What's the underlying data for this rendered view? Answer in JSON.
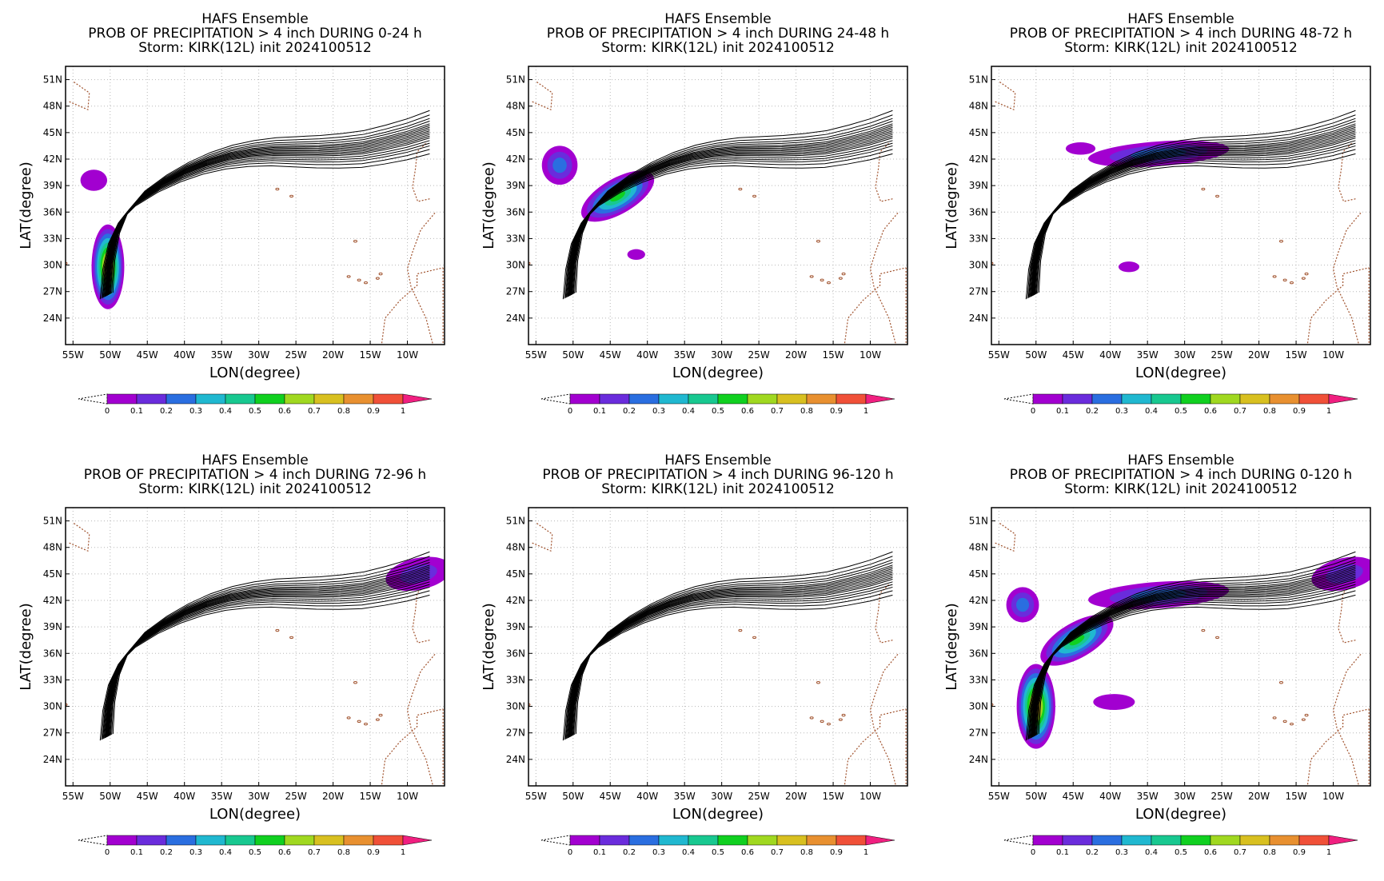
{
  "common": {
    "title1": "HAFS Ensemble",
    "title3": "Storm: KIRK(12L) init 2024100512",
    "xlabel": "LON(degree)",
    "ylabel": "LAT(degree)",
    "xticks": [
      "55W",
      "50W",
      "45W",
      "40W",
      "35W",
      "30W",
      "25W",
      "20W",
      "15W",
      "10W"
    ],
    "yticks": [
      "51N",
      "48N",
      "45N",
      "42N",
      "39N",
      "36N",
      "33N",
      "30N",
      "27N",
      "24N"
    ],
    "colorbar_labels": [
      "0",
      "0.1",
      "0.2",
      "0.3",
      "0.4",
      "0.5",
      "0.6",
      "0.7",
      "0.8",
      "0.9",
      "1"
    ],
    "colors": [
      "#a200d0",
      "#6a2cdc",
      "#2a6ee0",
      "#20b8d0",
      "#18c890",
      "#10d020",
      "#a0d820",
      "#d8c020",
      "#e89030",
      "#f05038",
      "#f01f80"
    ]
  },
  "panels": [
    {
      "title2": "PROB OF PRECIPITATION > 4 inch DURING  0-24 h"
    },
    {
      "title2": "PROB OF PRECIPITATION > 4 inch DURING 24-48 h"
    },
    {
      "title2": "PROB OF PRECIPITATION > 4 inch DURING 48-72 h"
    },
    {
      "title2": "PROB OF PRECIPITATION > 4 inch DURING 72-96 h"
    },
    {
      "title2": "PROB OF PRECIPITATION > 4 inch DURING 96-120 h"
    },
    {
      "title2": "PROB OF PRECIPITATION > 4 inch DURING 0-120 h"
    }
  ],
  "track": {
    "center_lon": [
      -50.5,
      -50.2,
      -49.5,
      -48.2,
      -46.0,
      -43.0,
      -40.0,
      -37.0,
      -34.0,
      -31.0,
      -28.0,
      -25.0,
      -22.0,
      -19.0,
      -16.0,
      -13.0,
      -10.0,
      -7.0
    ],
    "center_lat": [
      26.5,
      30.0,
      33.0,
      35.5,
      37.5,
      39.2,
      40.5,
      41.5,
      42.2,
      42.6,
      42.8,
      42.8,
      42.8,
      42.9,
      43.1,
      43.6,
      44.2,
      45.0
    ],
    "member_offsets": [
      -2.4,
      -1.9,
      -1.5,
      -1.2,
      -0.9,
      -0.6,
      -0.4,
      -0.2,
      0,
      0.2,
      0.4,
      0.6,
      0.8,
      1.0,
      1.3,
      1.6,
      2.0,
      2.5
    ]
  },
  "precip": [
    {
      "blobs": [
        {
          "lon": -50.3,
          "lat": 29.8,
          "rlon": 2.2,
          "rlat": 4.8,
          "p": 0.9
        },
        {
          "lon": -52.2,
          "lat": 39.6,
          "rlon": 1.8,
          "rlat": 1.2,
          "p": 0.1
        }
      ]
    },
    {
      "blobs": [
        {
          "lon": -44.0,
          "lat": 37.8,
          "rlon": 5.5,
          "rlat": 2.0,
          "p": 0.55,
          "tilt": -30
        },
        {
          "lon": -51.8,
          "lat": 41.3,
          "rlon": 2.4,
          "rlat": 2.2,
          "p": 0.3
        },
        {
          "lon": -41.5,
          "lat": 31.2,
          "rlon": 1.2,
          "rlat": 0.6,
          "p": 0.1
        }
      ]
    },
    {
      "blobs": [
        {
          "lon": -33.5,
          "lat": 42.6,
          "rlon": 9.5,
          "rlat": 1.4,
          "p": 0.3,
          "tilt": -4
        },
        {
          "lon": -44.0,
          "lat": 43.2,
          "rlon": 2.0,
          "rlat": 0.7,
          "p": 0.1
        },
        {
          "lon": -37.5,
          "lat": 29.8,
          "rlon": 1.4,
          "rlat": 0.6,
          "p": 0.1
        }
      ]
    },
    {
      "blobs": [
        {
          "lon": -8.5,
          "lat": 45.0,
          "rlon": 4.5,
          "rlat": 1.8,
          "p": 0.15,
          "tilt": -12
        }
      ]
    },
    {
      "blobs": []
    },
    {
      "blobs": [
        {
          "lon": -50.0,
          "lat": 30.0,
          "rlon": 2.6,
          "rlat": 4.8,
          "p": 0.9
        },
        {
          "lon": -44.5,
          "lat": 37.5,
          "rlon": 5.5,
          "rlat": 2.0,
          "p": 0.55,
          "tilt": -30
        },
        {
          "lon": -51.8,
          "lat": 41.5,
          "rlon": 2.2,
          "rlat": 2.0,
          "p": 0.3
        },
        {
          "lon": -33.5,
          "lat": 42.6,
          "rlon": 9.5,
          "rlat": 1.5,
          "p": 0.3,
          "tilt": -4
        },
        {
          "lon": -8.5,
          "lat": 45.0,
          "rlon": 4.5,
          "rlat": 1.8,
          "p": 0.15,
          "tilt": -12
        },
        {
          "lon": -39.5,
          "lat": 30.5,
          "rlon": 2.8,
          "rlat": 0.9,
          "p": 0.1
        }
      ]
    }
  ]
}
